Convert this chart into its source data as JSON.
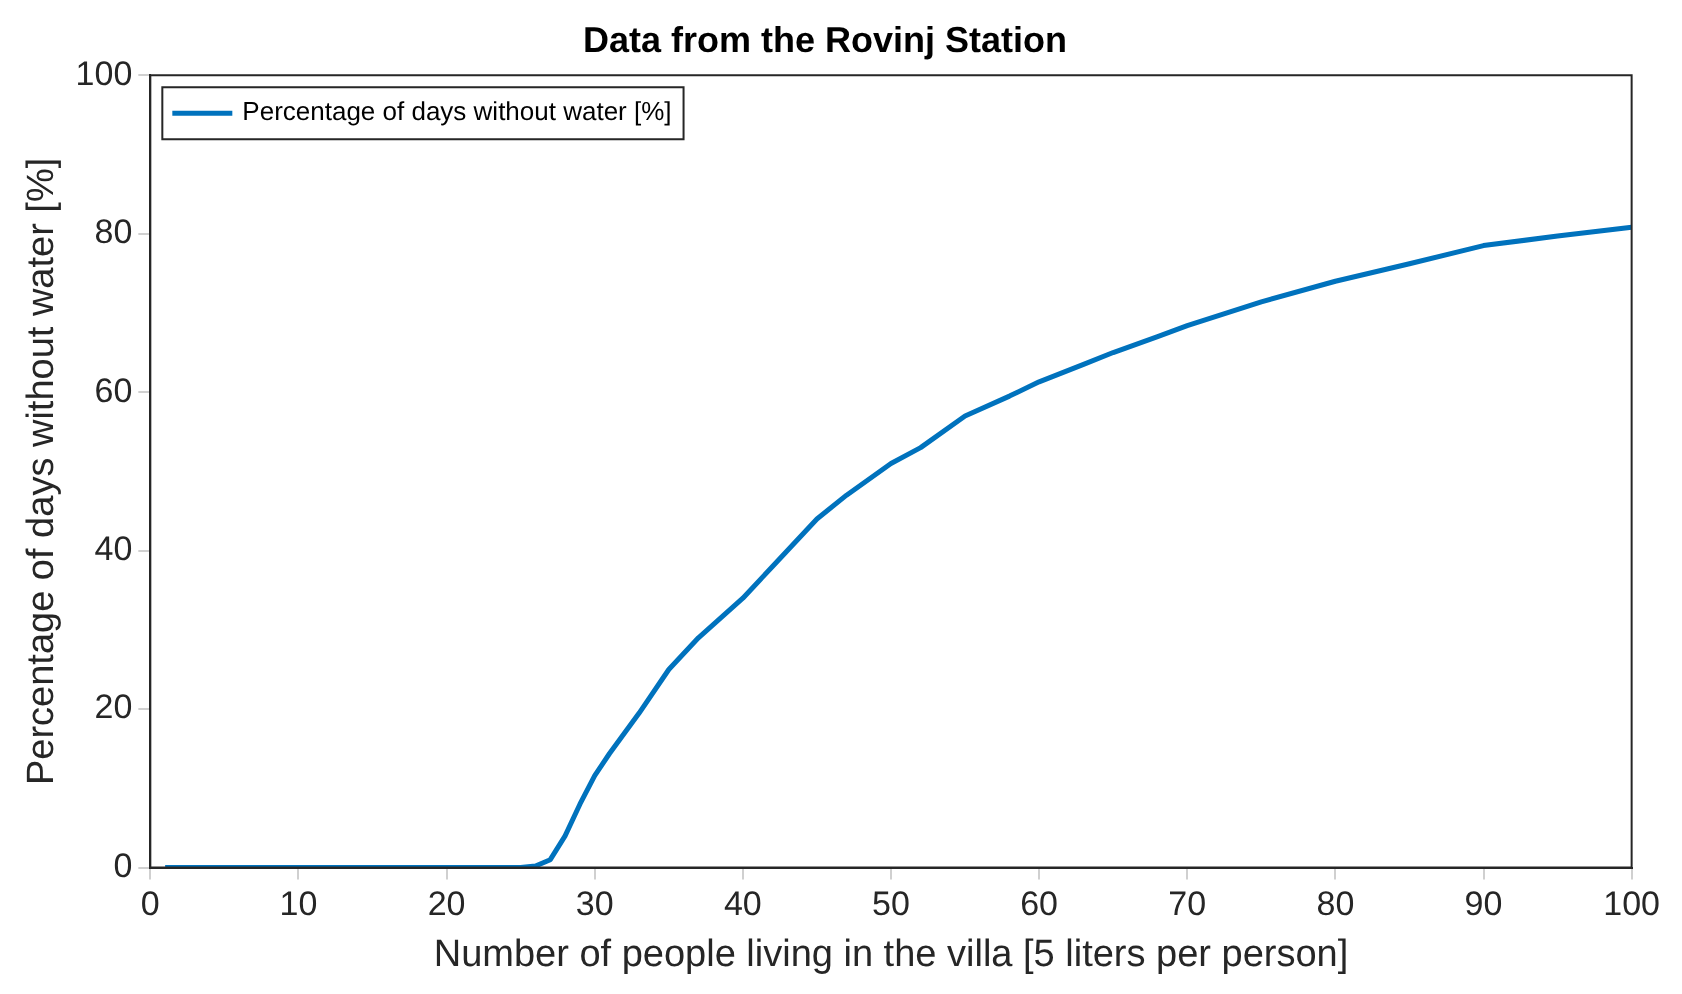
{
  "chart_data": {
    "type": "line",
    "title": "Data from the Rovinj Station",
    "xlabel": "Number of people living in the villa [5 liters per person]",
    "ylabel": "Percentage of days without water [%]",
    "xlim": [
      0,
      100
    ],
    "xticks": [
      0,
      10,
      20,
      30,
      40,
      50,
      60,
      70,
      80,
      90,
      100
    ],
    "ylim": [
      0,
      100
    ],
    "yticks": [
      0,
      20,
      40,
      60,
      80,
      100
    ],
    "grid": false,
    "legend": "top left",
    "marker": "none",
    "line_style": "solid",
    "series": [
      {
        "name": "Percentage of days without water [%]",
        "color": "#0072bd",
        "x": [
          1,
          5,
          10,
          15,
          20,
          25,
          26,
          27,
          28,
          29,
          30,
          31,
          33,
          35,
          37,
          40,
          42,
          45,
          47,
          50,
          52,
          55,
          58,
          60,
          63,
          65,
          68,
          70,
          75,
          80,
          85,
          90,
          95,
          100
        ],
        "values": [
          0,
          0,
          0,
          0,
          0,
          0,
          0.2,
          1,
          4,
          8,
          11.6,
          14.4,
          19.5,
          25,
          29,
          34,
          38,
          44,
          47,
          51,
          53,
          57,
          59.5,
          61.3,
          63.5,
          65,
          67,
          68.4,
          71.4,
          74,
          76.2,
          78.5,
          79.7,
          80.8
        ]
      }
    ]
  }
}
